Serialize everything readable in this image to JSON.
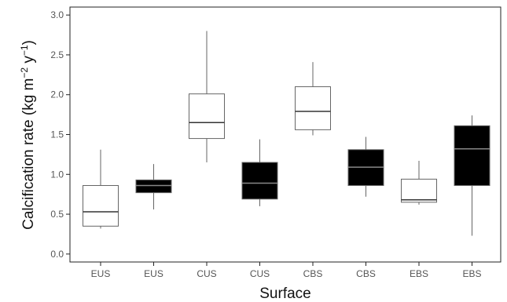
{
  "chart_data": {
    "type": "box",
    "xlabel": "Surface",
    "ylabel_main": "Calcification rate (kg m",
    "ylabel_exp1": "−2",
    "ylabel_mid": " y",
    "ylabel_exp2": "−1",
    "ylabel_end": ")",
    "ylim": [
      -0.1,
      3.1
    ],
    "yticks": [
      "0.0",
      "0.5",
      "1.0",
      "1.5",
      "2.0",
      "2.5",
      "3.0"
    ],
    "grid": false,
    "legend": "none",
    "categories": [
      "EUS",
      "EUS",
      "CUS",
      "CUS",
      "CBS",
      "CBS",
      "EBS",
      "EBS"
    ],
    "boxes": [
      {
        "min": 0.32,
        "q1": 0.35,
        "median": 0.53,
        "q3": 0.86,
        "max": 1.31,
        "fill": "#ffffff"
      },
      {
        "min": 0.56,
        "q1": 0.77,
        "median": 0.86,
        "q3": 0.93,
        "max": 1.13,
        "fill": "#000000"
      },
      {
        "min": 1.15,
        "q1": 1.45,
        "median": 1.65,
        "q3": 2.01,
        "max": 2.8,
        "fill": "#ffffff"
      },
      {
        "min": 0.6,
        "q1": 0.69,
        "median": 0.89,
        "q3": 1.15,
        "max": 1.44,
        "fill": "#000000"
      },
      {
        "min": 1.49,
        "q1": 1.56,
        "median": 1.79,
        "q3": 2.1,
        "max": 2.41,
        "fill": "#ffffff"
      },
      {
        "min": 0.72,
        "q1": 0.86,
        "median": 1.09,
        "q3": 1.31,
        "max": 1.47,
        "fill": "#000000"
      },
      {
        "min": 0.62,
        "q1": 0.65,
        "median": 0.68,
        "q3": 0.94,
        "max": 1.17,
        "fill": "#ffffff"
      },
      {
        "min": 0.23,
        "q1": 0.86,
        "median": 1.32,
        "q3": 1.61,
        "max": 1.74,
        "fill": "#000000"
      }
    ]
  },
  "colors": {
    "box_stroke": "#666666",
    "median_on_white": "#333333",
    "median_on_black": "#888888",
    "axis": "#222222"
  }
}
